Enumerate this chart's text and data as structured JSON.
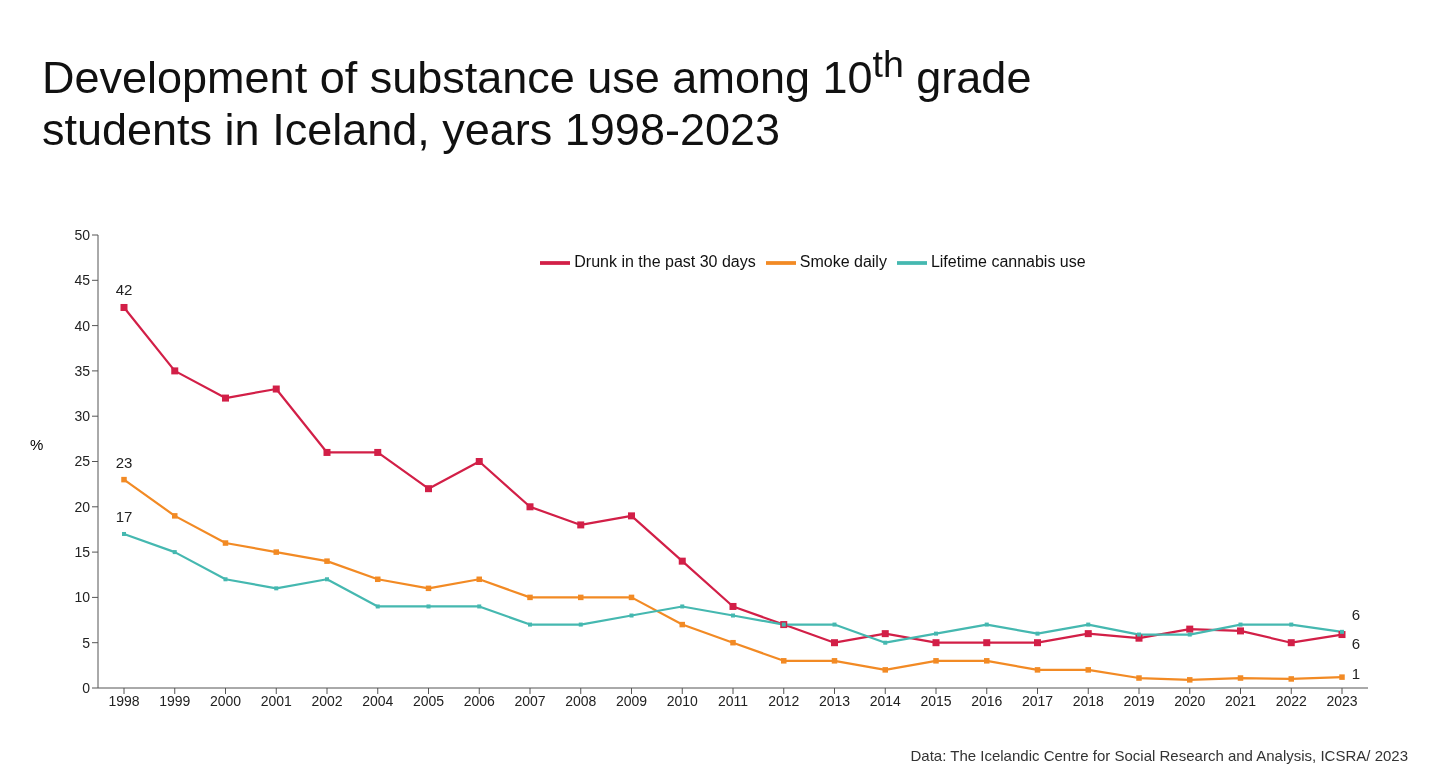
{
  "chart_data": {
    "type": "line",
    "title": "Development of substance use among 10$^{th}$ grade students in Iceland, years 1998-2023",
    "ylabel": "%",
    "categories": [
      "1998",
      "1999",
      "2000",
      "2001",
      "2002",
      "2004",
      "2005",
      "2006",
      "2007",
      "2008",
      "2009",
      "2010",
      "2011",
      "2012",
      "2013",
      "2014",
      "2015",
      "2016",
      "2017",
      "2018",
      "2019",
      "2020",
      "2021",
      "2022",
      "2023"
    ],
    "series": [
      {
        "name": "Drunk in the past 30 days",
        "color": "#d21f47",
        "values": [
          42,
          35,
          32,
          33,
          26,
          26,
          22,
          25,
          20,
          18,
          19,
          14,
          9,
          7,
          5,
          6,
          5,
          5,
          5,
          6,
          5.5,
          6.5,
          6.3,
          5,
          5.9
        ],
        "value_labels": [
          "42",
          null,
          null,
          null,
          null,
          null,
          null,
          null,
          null,
          null,
          null,
          null,
          null,
          null,
          null,
          null,
          null,
          null,
          null,
          null,
          null,
          null,
          null,
          null,
          "6"
        ]
      },
      {
        "name": "Smoke daily",
        "color": "#f28a24",
        "values": [
          23,
          19,
          16,
          15,
          14,
          12,
          11,
          12,
          10,
          10,
          10,
          7,
          5,
          3,
          3,
          2,
          3,
          3,
          2,
          2,
          1.1,
          0.9,
          1.1,
          1,
          1.2
        ],
        "value_labels": [
          "23",
          null,
          null,
          null,
          null,
          null,
          null,
          null,
          null,
          null,
          null,
          null,
          null,
          null,
          null,
          null,
          null,
          null,
          null,
          null,
          null,
          null,
          null,
          null,
          "1"
        ]
      },
      {
        "name": "Lifetime cannabis use",
        "color": "#45b8b0",
        "values": [
          17,
          15,
          12,
          11,
          12,
          9,
          9,
          9,
          7,
          7,
          8,
          9,
          8,
          7,
          7,
          5,
          6,
          7,
          6,
          7,
          5.9,
          5.9,
          7,
          7,
          6.2
        ],
        "value_labels": [
          "17",
          null,
          null,
          null,
          null,
          null,
          null,
          null,
          null,
          null,
          null,
          null,
          null,
          null,
          null,
          null,
          null,
          null,
          null,
          null,
          null,
          null,
          null,
          null,
          "6"
        ]
      }
    ],
    "ylim": [
      0,
      50
    ],
    "yticks": [
      0,
      5,
      10,
      15,
      20,
      25,
      30,
      35,
      40,
      45,
      50
    ],
    "grid": false,
    "legend": "top",
    "marker": "square",
    "line_style": "solid",
    "annotations": [
      "Data: The Icelandic Centre for Social Research and Analysis, ICSRA/ 2023"
    ]
  }
}
